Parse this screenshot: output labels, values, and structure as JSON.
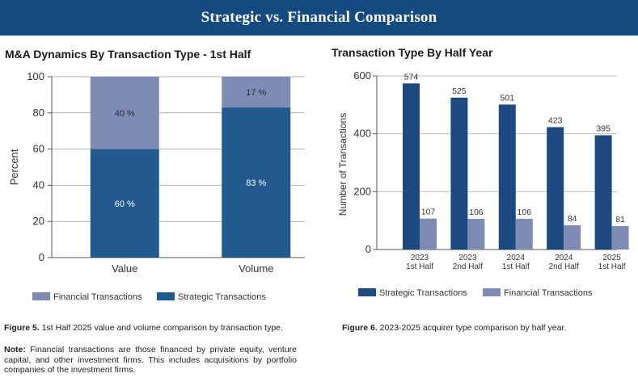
{
  "header": {
    "title": "Strategic vs. Financial Comparison"
  },
  "colors": {
    "strategic": "#22598f",
    "financial": "#7e8bb3",
    "strategic_right": "#1c4a80",
    "financial_right": "#7e8bb3",
    "header": "#134a7f"
  },
  "chart_data": [
    {
      "type": "bar",
      "stacked": true,
      "title": "M&A Dynamics By Transaction Type - 1st Half",
      "categories": [
        "Value",
        "Volume"
      ],
      "series": [
        {
          "name": "Strategic Transactions",
          "values": [
            60,
            83
          ],
          "labels": [
            "60 %",
            "83 %"
          ]
        },
        {
          "name": "Financial Transactions",
          "values": [
            40,
            17
          ],
          "labels": [
            "40 %",
            "17 %"
          ]
        }
      ],
      "ylabel": "Percent",
      "xlabel": "",
      "ylim": [
        0,
        100
      ],
      "yticks": [
        0,
        20,
        40,
        60,
        80,
        100
      ],
      "legend": [
        "Financial Transactions",
        "Strategic Transactions"
      ],
      "legend_position": "bottom",
      "grid": true
    },
    {
      "type": "bar",
      "stacked": false,
      "title": "Transaction Type By Half Year",
      "categories": [
        [
          "2023",
          "1st Half"
        ],
        [
          "2023",
          "2nd Half"
        ],
        [
          "2024",
          "1st Half"
        ],
        [
          "2024",
          "2nd Half"
        ],
        [
          "2025",
          "1st Half"
        ]
      ],
      "series": [
        {
          "name": "Strategic Transactions",
          "values": [
            574,
            525,
            501,
            423,
            395
          ]
        },
        {
          "name": "Financial Transactions",
          "values": [
            107,
            106,
            106,
            84,
            81
          ]
        }
      ],
      "ylabel": "Number of Transactions",
      "xlabel": "",
      "ylim": [
        0,
        600
      ],
      "yticks": [
        0,
        200,
        400,
        600
      ],
      "legend": [
        "Strategic Transactions",
        "Financial Transactions"
      ],
      "legend_position": "bottom",
      "grid": true
    }
  ],
  "captions": {
    "fig5_label": "Figure 5.",
    "fig5_text": " 1st Half 2025 value and volume comparison by transaction type.",
    "fig6_label": "Figure 6.",
    "fig6_text": " 2023-2025 acquirer type comparison by half year."
  },
  "note": {
    "label": "Note:",
    "text": " Financial transactions are those financed by private equity, venture capital, and other investment firms. This includes acquisitions by portfolio companies of the investment firms."
  }
}
